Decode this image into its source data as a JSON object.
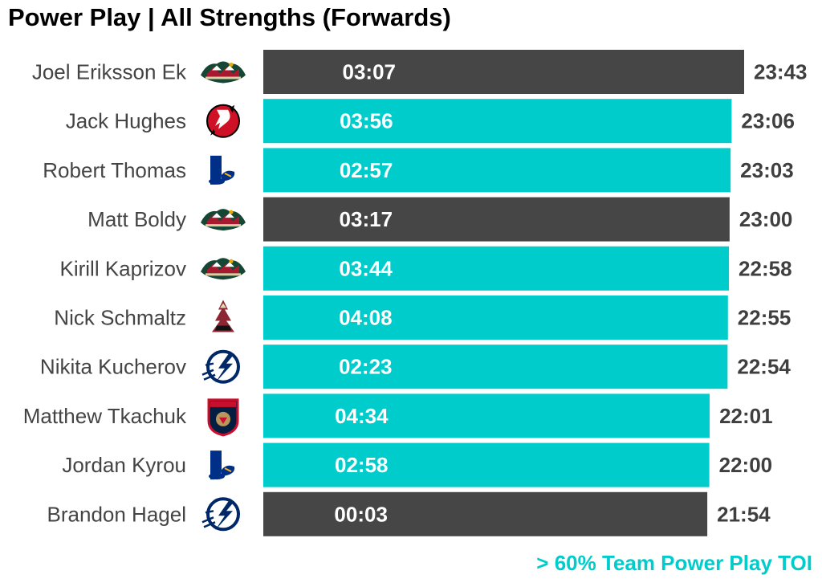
{
  "title": "Power Play | All Strengths (Forwards)",
  "caption": "> 60% Team Power Play TOI",
  "colors": {
    "highlight": "#00cccc",
    "normal": "#464646"
  },
  "chart_data": {
    "type": "bar",
    "orientation": "horizontal",
    "title": "Power Play | All Strengths (Forwards)",
    "xlim": [
      "00:00",
      "23:43"
    ],
    "categories": [
      "Joel Eriksson Ek",
      "Jack Hughes",
      "Robert Thomas",
      "Matt Boldy",
      "Kirill Kaprizov",
      "Nick Schmaltz",
      "Nikita Kucherov",
      "Matthew Tkachuk",
      "Jordan Kyrou",
      "Brandon Hagel"
    ],
    "teams": [
      "minnesota-wild-logo",
      "new-jersey-devils-logo",
      "st-louis-blues-logo",
      "minnesota-wild-logo",
      "minnesota-wild-logo",
      "arizona-coyotes-logo",
      "tampa-bay-lightning-logo",
      "florida-panthers-logo",
      "st-louis-blues-logo",
      "tampa-bay-lightning-logo"
    ],
    "values": [
      "23:43",
      "23:06",
      "23:03",
      "23:00",
      "22:58",
      "22:55",
      "22:54",
      "22:01",
      "22:00",
      "21:54"
    ],
    "bar_labels": [
      "03:07",
      "03:56",
      "02:57",
      "03:17",
      "03:44",
      "04:08",
      "02:23",
      "04:34",
      "02:58",
      "00:03"
    ],
    "highlight": [
      false,
      true,
      true,
      false,
      true,
      true,
      true,
      true,
      true,
      false
    ],
    "legend": "> 60% Team Power Play TOI"
  }
}
